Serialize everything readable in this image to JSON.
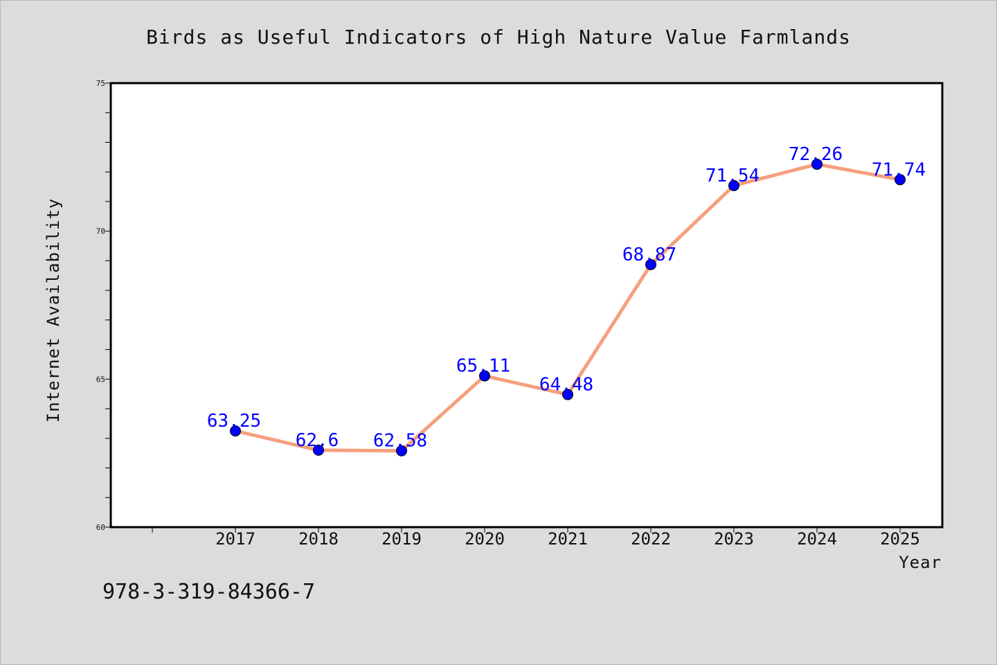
{
  "chart_data": {
    "type": "line",
    "title": "Birds as Useful Indicators of High Nature Value Farmlands",
    "xlabel": "Year",
    "ylabel": "Internet Availability",
    "categories": [
      "2017",
      "2018",
      "2019",
      "2020",
      "2021",
      "2022",
      "2023",
      "2024",
      "2025"
    ],
    "series": [
      {
        "values": [
          63.25,
          62.6,
          62.58,
          65.11,
          64.48,
          68.87,
          71.54,
          72.26,
          71.74
        ],
        "data_labels": [
          "63.25",
          "62.6",
          "62.58",
          "65.11",
          "64.48",
          "68.87",
          "71.54",
          "72.26",
          "71.74"
        ],
        "line_color": "#f4a07e",
        "marker_color": "#0000ff"
      }
    ],
    "ylim": [
      60,
      75
    ],
    "yticks": [
      "60",
      "65",
      "70",
      "75"
    ],
    "y_minor_step": 1,
    "grid": false,
    "legend": "none",
    "plot_background": "#ffffff",
    "page_background": "#dcdcdc"
  },
  "footer": {
    "text": "978-3-319-84366-7"
  }
}
